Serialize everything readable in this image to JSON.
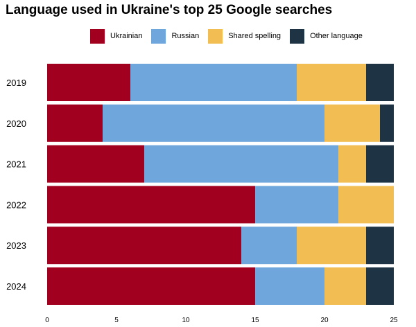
{
  "chart_data": {
    "type": "bar",
    "orientation": "horizontal",
    "stacked": true,
    "title": "Language used in Ukraine's top 25 Google searches",
    "xlabel": "",
    "ylabel": "",
    "categories": [
      "2019",
      "2020",
      "2021",
      "2022",
      "2023",
      "2024"
    ],
    "series": [
      {
        "name": "Ukrainian",
        "color": "#a1001e",
        "values": [
          6,
          4,
          7,
          15,
          14,
          15
        ]
      },
      {
        "name": "Russian",
        "color": "#6fa6dc",
        "values": [
          12,
          16,
          14,
          6,
          4,
          5
        ]
      },
      {
        "name": "Shared spelling",
        "color": "#f2bd52",
        "values": [
          5,
          4,
          2,
          4,
          5,
          3
        ]
      },
      {
        "name": "Other language",
        "color": "#1e3344",
        "values": [
          2,
          1,
          2,
          0,
          2,
          2
        ]
      }
    ],
    "xlim": [
      0,
      25
    ],
    "xticks": [
      0,
      5,
      10,
      15,
      20,
      25
    ],
    "grid": false,
    "legend": "top"
  }
}
